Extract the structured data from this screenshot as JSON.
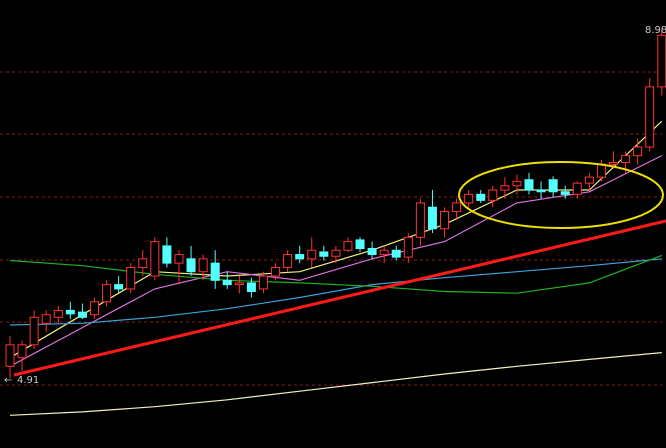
{
  "chart_data": {
    "type": "candlestick",
    "ylim": [
      4.1,
      9.31
    ],
    "high_label": 8.98,
    "low_label": 4.91,
    "up_color": "#ff3232",
    "down_color": "#54ffff",
    "open": [
      5.05,
      5.15,
      5.3,
      5.55,
      5.62,
      5.7,
      5.68,
      5.65,
      5.8,
      6.0,
      5.95,
      6.2,
      6.1,
      6.45,
      6.25,
      6.3,
      6.15,
      6.25,
      6.05,
      6.0,
      6.02,
      5.95,
      6.1,
      6.2,
      6.35,
      6.3,
      6.38,
      6.33,
      6.4,
      6.52,
      6.42,
      6.35,
      6.4,
      6.32,
      6.55,
      6.9,
      6.65,
      6.85,
      6.95,
      7.05,
      6.98,
      7.1,
      7.15,
      7.22,
      7.1,
      7.22,
      7.08,
      7.05,
      7.18,
      7.25,
      7.4,
      7.42,
      7.5,
      7.6,
      8.3
    ],
    "high": [
      5.4,
      5.35,
      5.7,
      5.7,
      5.75,
      5.8,
      5.78,
      5.85,
      6.05,
      6.1,
      6.25,
      6.4,
      6.55,
      6.55,
      6.4,
      6.45,
      6.35,
      6.4,
      6.15,
      6.1,
      6.08,
      6.15,
      6.25,
      6.4,
      6.45,
      6.55,
      6.45,
      6.45,
      6.55,
      6.55,
      6.5,
      6.45,
      6.45,
      6.6,
      7.0,
      7.1,
      6.9,
      7.0,
      7.1,
      7.1,
      7.15,
      7.25,
      7.28,
      7.3,
      7.2,
      7.26,
      7.15,
      7.2,
      7.3,
      7.45,
      7.55,
      7.55,
      7.7,
      8.4,
      8.98
    ],
    "low": [
      4.91,
      5.0,
      5.25,
      5.45,
      5.55,
      5.6,
      5.6,
      5.6,
      5.75,
      5.9,
      5.9,
      6.1,
      6.05,
      6.2,
      6.0,
      6.1,
      6.05,
      5.95,
      5.95,
      5.9,
      5.85,
      5.9,
      6.05,
      6.15,
      6.25,
      6.2,
      6.28,
      6.25,
      6.38,
      6.38,
      6.3,
      6.25,
      6.28,
      6.25,
      6.45,
      6.6,
      6.55,
      6.75,
      6.9,
      6.95,
      6.9,
      7.0,
      7.05,
      7.05,
      7.0,
      7.02,
      7.0,
      7.0,
      7.1,
      7.2,
      7.35,
      7.3,
      7.4,
      7.55,
      8.2
    ],
    "close": [
      5.3,
      5.3,
      5.62,
      5.65,
      5.7,
      5.66,
      5.62,
      5.8,
      6.0,
      5.95,
      6.2,
      6.3,
      6.5,
      6.25,
      6.35,
      6.15,
      6.3,
      6.05,
      6.0,
      6.02,
      5.92,
      6.1,
      6.2,
      6.35,
      6.3,
      6.4,
      6.33,
      6.4,
      6.5,
      6.42,
      6.35,
      6.4,
      6.32,
      6.55,
      6.95,
      6.65,
      6.85,
      6.95,
      7.05,
      6.98,
      7.1,
      7.15,
      7.2,
      7.1,
      7.08,
      7.08,
      7.05,
      7.18,
      7.25,
      7.4,
      7.42,
      7.5,
      7.6,
      8.3,
      8.9
    ],
    "series": [
      {
        "color": "#f0f080",
        "x": [
          0,
          6,
          12,
          18,
          24,
          30,
          36,
          42,
          48,
          54
        ],
        "values": [
          5.15,
          5.65,
          6.15,
          6.1,
          6.15,
          6.4,
          6.7,
          7.1,
          7.1,
          7.9
        ]
      },
      {
        "color": "#e070e0",
        "x": [
          0,
          6,
          12,
          18,
          24,
          30,
          36,
          42,
          48,
          54
        ],
        "values": [
          5.05,
          5.5,
          5.95,
          6.15,
          6.05,
          6.3,
          6.5,
          6.95,
          7.08,
          7.5
        ]
      },
      {
        "color": "#3aa0d8",
        "x": [
          0,
          6,
          12,
          18,
          24,
          30,
          36,
          42,
          48,
          54
        ],
        "values": [
          5.53,
          5.55,
          5.62,
          5.72,
          5.85,
          6.0,
          6.08,
          6.15,
          6.22,
          6.3
        ]
      },
      {
        "color": "#20b020",
        "x": [
          0,
          6,
          12,
          18,
          24,
          30,
          36,
          42,
          48,
          54
        ],
        "values": [
          6.28,
          6.22,
          6.12,
          6.05,
          6.02,
          5.98,
          5.92,
          5.9,
          6.02,
          6.34
        ]
      },
      {
        "color": "#f5f0c0",
        "x": [
          0,
          6,
          12,
          18,
          24,
          30,
          36,
          42,
          48,
          54
        ],
        "values": [
          4.48,
          4.52,
          4.58,
          4.66,
          4.76,
          4.86,
          4.96,
          5.05,
          5.13,
          5.21
        ]
      }
    ]
  }
}
